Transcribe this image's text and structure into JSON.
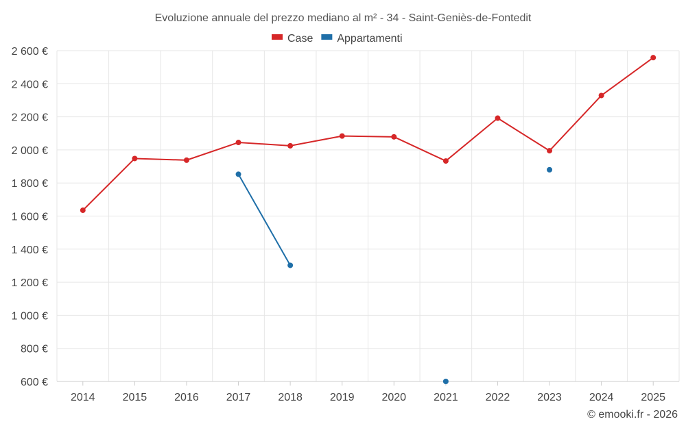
{
  "chart_data": {
    "type": "line",
    "title": "Evoluzione annuale del prezzo mediano al m² - 34 - Saint-Geniès-de-Fontedit",
    "xlabel": "",
    "ylabel": "",
    "categories": [
      "2014",
      "2015",
      "2016",
      "2017",
      "2018",
      "2019",
      "2020",
      "2021",
      "2022",
      "2023",
      "2024",
      "2025"
    ],
    "ylim": [
      600,
      2600
    ],
    "yticks": [
      600,
      800,
      1000,
      1200,
      1400,
      1600,
      1800,
      2000,
      2200,
      2400,
      2600
    ],
    "ytick_labels": [
      "600 €",
      "800 €",
      "1 000 €",
      "1 200 €",
      "1 400 €",
      "1 600 €",
      "1 800 €",
      "2 000 €",
      "2 200 €",
      "2 400 €",
      "2 600 €"
    ],
    "grid": true,
    "legend_position": "top-center",
    "series": [
      {
        "name": "Case",
        "color": "#d62728",
        "values": [
          1635,
          1948,
          1938,
          2045,
          2025,
          2084,
          2079,
          1933,
          2192,
          1995,
          2329,
          2558
        ]
      },
      {
        "name": "Appartamenti",
        "color": "#1f6fa8",
        "values": [
          null,
          null,
          null,
          1853,
          1302,
          null,
          null,
          600,
          null,
          1880,
          null,
          null
        ]
      }
    ]
  },
  "credit": "© emooki.fr - 2026"
}
